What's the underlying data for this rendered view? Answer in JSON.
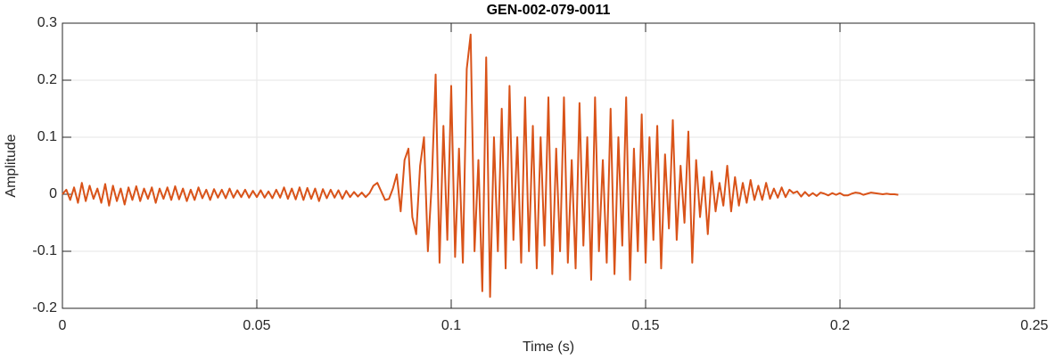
{
  "chart_data": {
    "type": "line",
    "title": "GEN-002-079-0011",
    "xlabel": "Time (s)",
    "ylabel": "Amplitude",
    "x": [
      0,
      0.001,
      0.002,
      0.003,
      0.004,
      0.005,
      0.006,
      0.007,
      0.008,
      0.009,
      0.01,
      0.011,
      0.012,
      0.013,
      0.014,
      0.015,
      0.016,
      0.017,
      0.018,
      0.019,
      0.02,
      0.021,
      0.022,
      0.023,
      0.024,
      0.025,
      0.026,
      0.027,
      0.028,
      0.029,
      0.03,
      0.031,
      0.032,
      0.033,
      0.034,
      0.035,
      0.036,
      0.037,
      0.038,
      0.039,
      0.04,
      0.041,
      0.042,
      0.043,
      0.044,
      0.045,
      0.046,
      0.047,
      0.048,
      0.049,
      0.05,
      0.051,
      0.052,
      0.053,
      0.054,
      0.055,
      0.056,
      0.057,
      0.058,
      0.059,
      0.06,
      0.061,
      0.062,
      0.063,
      0.064,
      0.065,
      0.066,
      0.067,
      0.068,
      0.069,
      0.07,
      0.071,
      0.072,
      0.073,
      0.074,
      0.075,
      0.076,
      0.077,
      0.078,
      0.079,
      0.08,
      0.081,
      0.082,
      0.083,
      0.084,
      0.085,
      0.086,
      0.087,
      0.088,
      0.089,
      0.09,
      0.091,
      0.092,
      0.093,
      0.094,
      0.095,
      0.096,
      0.097,
      0.098,
      0.099,
      0.1,
      0.101,
      0.102,
      0.103,
      0.104,
      0.105,
      0.106,
      0.107,
      0.108,
      0.109,
      0.11,
      0.111,
      0.112,
      0.113,
      0.114,
      0.115,
      0.116,
      0.117,
      0.118,
      0.119,
      0.12,
      0.121,
      0.122,
      0.123,
      0.124,
      0.125,
      0.126,
      0.127,
      0.128,
      0.129,
      0.13,
      0.131,
      0.132,
      0.133,
      0.134,
      0.135,
      0.136,
      0.137,
      0.138,
      0.139,
      0.14,
      0.141,
      0.142,
      0.143,
      0.144,
      0.145,
      0.146,
      0.147,
      0.148,
      0.149,
      0.15,
      0.151,
      0.152,
      0.153,
      0.154,
      0.155,
      0.156,
      0.157,
      0.158,
      0.159,
      0.16,
      0.161,
      0.162,
      0.163,
      0.164,
      0.165,
      0.166,
      0.167,
      0.168,
      0.169,
      0.17,
      0.171,
      0.172,
      0.173,
      0.174,
      0.175,
      0.176,
      0.177,
      0.178,
      0.179,
      0.18,
      0.181,
      0.182,
      0.183,
      0.184,
      0.185,
      0.186,
      0.187,
      0.188,
      0.189,
      0.19,
      0.191,
      0.192,
      0.193,
      0.194,
      0.195,
      0.196,
      0.197,
      0.198,
      0.199,
      0.2,
      0.201,
      0.202,
      0.203,
      0.204,
      0.205,
      0.206,
      0.207,
      0.208,
      0.209,
      0.21,
      0.211,
      0.212,
      0.213,
      0.214,
      0.215
    ],
    "series": [
      {
        "color": "#D95319",
        "values": [
          0,
          0.008,
          -0.01,
          0.012,
          -0.015,
          0.02,
          -0.012,
          0.015,
          -0.008,
          0.01,
          -0.015,
          0.018,
          -0.02,
          0.015,
          -0.012,
          0.01,
          -0.018,
          0.012,
          -0.01,
          0.014,
          -0.012,
          0.01,
          -0.008,
          0.012,
          -0.015,
          0.01,
          -0.008,
          0.012,
          -0.01,
          0.014,
          -0.009,
          0.01,
          -0.012,
          0.008,
          -0.01,
          0.012,
          -0.007,
          0.008,
          -0.01,
          0.009,
          -0.006,
          0.008,
          -0.007,
          0.01,
          -0.006,
          0.007,
          -0.005,
          0.008,
          -0.006,
          0.006,
          -0.005,
          0.007,
          -0.006,
          0.005,
          -0.007,
          0.008,
          -0.006,
          0.012,
          -0.008,
          0.01,
          -0.009,
          0.012,
          -0.01,
          0.011,
          -0.008,
          0.01,
          -0.012,
          0.009,
          -0.007,
          0.008,
          -0.006,
          0.007,
          -0.008,
          0.006,
          -0.005,
          0.004,
          -0.004,
          0.003,
          -0.005,
          0.002,
          0.015,
          0.02,
          0.005,
          -0.01,
          -0.008,
          0.01,
          0.035,
          -0.03,
          0.06,
          0.08,
          -0.04,
          -0.07,
          0.05,
          0.1,
          -0.1,
          0.02,
          0.21,
          -0.12,
          0.12,
          -0.08,
          0.19,
          -0.11,
          0.08,
          -0.12,
          0.22,
          0.28,
          -0.1,
          0.06,
          -0.17,
          0.24,
          -0.18,
          0.1,
          -0.1,
          0.15,
          -0.13,
          0.19,
          -0.08,
          0.1,
          -0.12,
          0.17,
          -0.1,
          0.12,
          -0.13,
          0.1,
          -0.09,
          0.17,
          -0.14,
          0.08,
          -0.1,
          0.17,
          -0.12,
          0.06,
          -0.13,
          0.16,
          -0.09,
          0.1,
          -0.15,
          0.17,
          -0.1,
          0.06,
          -0.12,
          0.15,
          -0.14,
          0.1,
          -0.09,
          0.17,
          -0.15,
          0.08,
          -0.1,
          0.14,
          -0.12,
          0.1,
          -0.08,
          0.12,
          -0.13,
          0.07,
          -0.06,
          0.13,
          -0.08,
          0.05,
          -0.05,
          0.11,
          -0.12,
          0.06,
          -0.04,
          0.03,
          -0.07,
          0.04,
          -0.03,
          0.02,
          -0.02,
          0.05,
          -0.03,
          0.03,
          -0.02,
          0.02,
          -0.015,
          0.025,
          -0.01,
          0.015,
          -0.01,
          0.02,
          -0.008,
          0.01,
          -0.006,
          0.012,
          -0.005,
          0.008,
          0.002,
          0.005,
          -0.004,
          0.004,
          -0.003,
          0.002,
          -0.003,
          0.003,
          0.001,
          -0.002,
          0.002,
          -0.001,
          0.002,
          -0.002,
          -0.002,
          0.001,
          0.003,
          0.002,
          -0.001,
          0.001,
          0.003,
          0.002,
          0.001,
          0,
          0.001,
          0,
          0,
          -0.001
        ]
      }
    ],
    "xlim": [
      0,
      0.25
    ],
    "xticks": [
      0,
      0.05,
      0.1,
      0.15,
      0.2,
      0.25
    ],
    "ylim": [
      -0.2,
      0.3
    ],
    "yticks": [
      -0.2,
      -0.1,
      0,
      0.1,
      0.2,
      0.3
    ],
    "grid": true
  }
}
